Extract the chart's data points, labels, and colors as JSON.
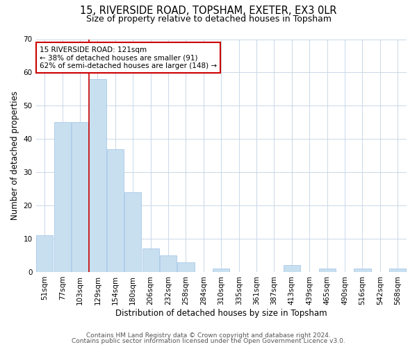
{
  "title1": "15, RIVERSIDE ROAD, TOPSHAM, EXETER, EX3 0LR",
  "title2": "Size of property relative to detached houses in Topsham",
  "xlabel": "Distribution of detached houses by size in Topsham",
  "ylabel": "Number of detached properties",
  "bar_labels": [
    "51sqm",
    "77sqm",
    "103sqm",
    "129sqm",
    "154sqm",
    "180sqm",
    "206sqm",
    "232sqm",
    "258sqm",
    "284sqm",
    "310sqm",
    "335sqm",
    "361sqm",
    "387sqm",
    "413sqm",
    "439sqm",
    "465sqm",
    "490sqm",
    "516sqm",
    "542sqm",
    "568sqm"
  ],
  "bar_values": [
    11,
    45,
    45,
    58,
    37,
    24,
    7,
    5,
    3,
    0,
    1,
    0,
    0,
    0,
    2,
    0,
    1,
    0,
    1,
    0,
    1
  ],
  "bar_color": "#c8dff0",
  "bar_edge_color": "#a8c8e8",
  "ylim": [
    0,
    70
  ],
  "yticks": [
    0,
    10,
    20,
    30,
    40,
    50,
    60,
    70
  ],
  "red_line_x": 2.5,
  "annotation_title": "15 RIVERSIDE ROAD: 121sqm",
  "annotation_line1": "← 38% of detached houses are smaller (91)",
  "annotation_line2": "62% of semi-detached houses are larger (148) →",
  "annotation_box_color": "#ffffff",
  "annotation_border_color": "#cc0000",
  "footer1": "Contains HM Land Registry data © Crown copyright and database right 2024.",
  "footer2": "Contains public sector information licensed under the Open Government Licence v3.0.",
  "bg_color": "#ffffff",
  "grid_color": "#c8d8e8",
  "title1_fontsize": 10.5,
  "title2_fontsize": 9,
  "axis_label_fontsize": 8.5,
  "tick_fontsize": 7.5,
  "annotation_fontsize": 7.5,
  "footer_fontsize": 6.5
}
